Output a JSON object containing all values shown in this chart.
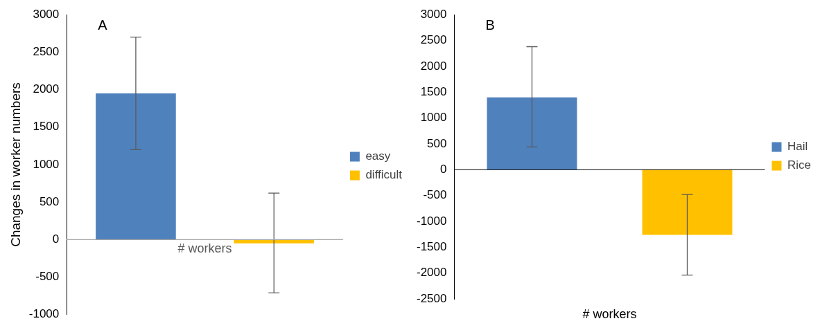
{
  "chart_data": [
    {
      "type": "bar",
      "annotations": [
        "A"
      ],
      "ylabel": "Changes in worker numbers",
      "categories": [
        "# workers"
      ],
      "series": [
        {
          "name": "easy",
          "color": "#4f81bd",
          "values": [
            1950
          ],
          "errors": [
            [
              1200,
              2700
            ]
          ]
        },
        {
          "name": "difficult",
          "color": "#ffc000",
          "values": [
            -50
          ],
          "errors": [
            [
              -710,
              620
            ]
          ]
        }
      ],
      "ref_lines": [
        {
          "axis": "y",
          "value": 0,
          "color": "#a6a6a6"
        }
      ],
      "ylim": [
        -1000,
        3000
      ],
      "yticks": [
        -1000,
        -500,
        0,
        500,
        1000,
        1500,
        2000,
        2500,
        3000
      ],
      "grid": false,
      "legend": "right"
    },
    {
      "type": "bar",
      "annotations": [
        "B"
      ],
      "xlabel": "# workers",
      "categories": [
        null
      ],
      "series": [
        {
          "name": "Hail",
          "color": "#4f81bd",
          "values": [
            1400
          ],
          "errors": [
            [
              440,
              2380
            ]
          ]
        },
        {
          "name": "Rice",
          "color": "#ffc000",
          "values": [
            -1260
          ],
          "errors": [
            [
              -2040,
              -480
            ]
          ]
        }
      ],
      "ref_lines": [
        {
          "axis": "y",
          "value": 0,
          "color": "#000000"
        }
      ],
      "ylim": [
        -2500,
        3000
      ],
      "yticks": [
        -2500,
        -2000,
        -1500,
        -1000,
        -500,
        0,
        500,
        1000,
        1500,
        2000,
        2500,
        3000
      ],
      "grid": false,
      "legend": "right"
    }
  ]
}
